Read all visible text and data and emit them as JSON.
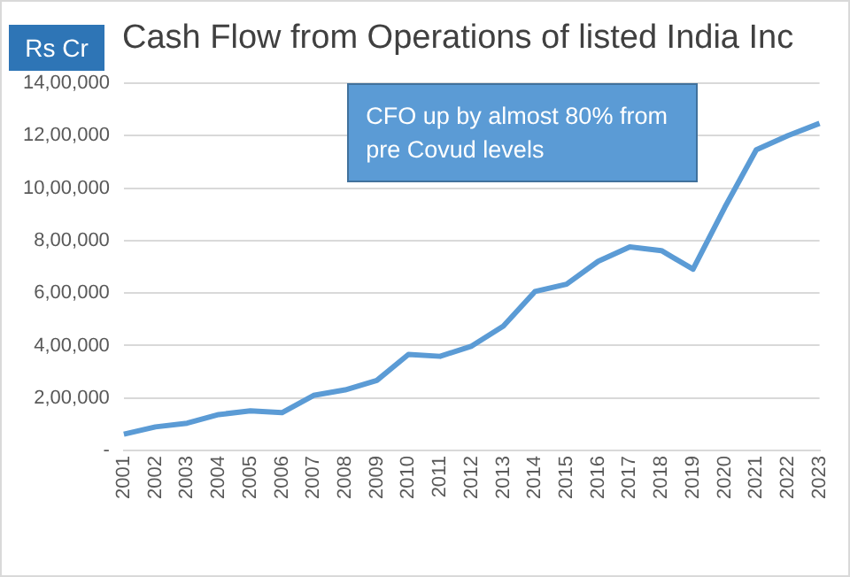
{
  "chart_data": {
    "type": "line",
    "title": "Cash Flow from Operations of listed  India Inc",
    "ylabel": "Rs Cr",
    "categories": [
      "2001",
      "2002",
      "2003",
      "2004",
      "2005",
      "2006",
      "2007",
      "2008",
      "2009",
      "2010",
      "2011",
      "2012",
      "2013",
      "2014",
      "2015",
      "2016",
      "2017",
      "2018",
      "2019",
      "2020",
      "2021",
      "2022",
      "2023"
    ],
    "series": [
      {
        "color": "#5b9bd5",
        "values": [
          62000,
          90000,
          104000,
          137000,
          151000,
          144000,
          210000,
          231000,
          267000,
          366000,
          359000,
          398000,
          474000,
          606000,
          634000,
          721000,
          776000,
          762000,
          691000,
          926000,
          1146000,
          1200000,
          1247000
        ]
      }
    ],
    "ylim": [
      0,
      1400000
    ],
    "yticks": [
      {
        "value": 0,
        "label": "-"
      },
      {
        "value": 200000,
        "label": "2,00,000"
      },
      {
        "value": 400000,
        "label": "4,00,000"
      },
      {
        "value": 600000,
        "label": "6,00,000"
      },
      {
        "value": 800000,
        "label": "8,00,000"
      },
      {
        "value": 1000000,
        "label": "10,00,000"
      },
      {
        "value": 1200000,
        "label": "12,00,000"
      },
      {
        "value": 1400000,
        "label": "14,00,000"
      }
    ],
    "grid": "y",
    "legend": false,
    "marker": "none",
    "line_style": "solid",
    "annotations": [
      "CFO up by almost 80% from pre Covud levels"
    ]
  }
}
